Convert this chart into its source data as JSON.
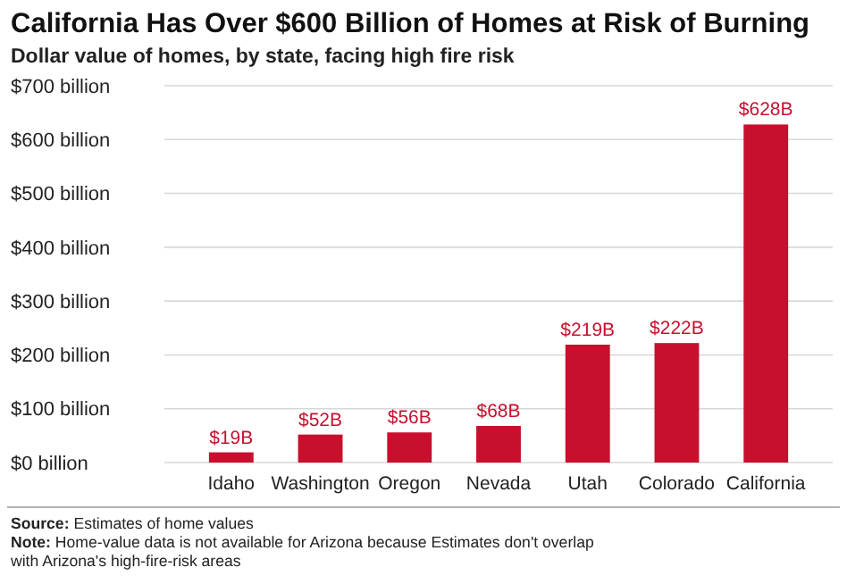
{
  "chart_data": {
    "type": "bar",
    "title": "California Has Over $600 Billion of Homes at Risk of Burning",
    "subtitle": "Dollar value of homes, by state, facing high fire risk",
    "categories": [
      "Idaho",
      "Washington",
      "Oregon",
      "Nevada",
      "Utah",
      "Colorado",
      "California"
    ],
    "values": [
      19,
      52,
      56,
      68,
      219,
      222,
      628
    ],
    "value_labels": [
      "$19B",
      "$52B",
      "$56B",
      "$68B",
      "$219B",
      "$222B",
      "$628B"
    ],
    "color": "#c8102e",
    "ylim": [
      0,
      700
    ],
    "yticks": [
      {
        "value": 0,
        "label": "$0 billion"
      },
      {
        "value": 100,
        "label": "$100 billion"
      },
      {
        "value": 200,
        "label": "$200 billion"
      },
      {
        "value": 300,
        "label": "$300 billion"
      },
      {
        "value": 400,
        "label": "$400 billion"
      },
      {
        "value": 500,
        "label": "$500 billion"
      },
      {
        "value": 600,
        "label": "$600 billion"
      },
      {
        "value": 700,
        "label": "$700 billion"
      }
    ],
    "grid": "y",
    "annotations": [
      "Source: Estimates of home values",
      "Note: Home-value data is not available for Arizona because Estimates don't overlap",
      "with Arizona's high-fire-risk areas"
    ]
  }
}
